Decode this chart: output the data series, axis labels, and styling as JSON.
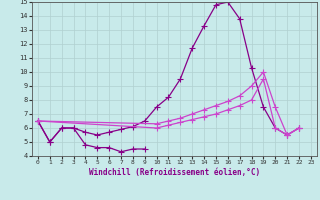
{
  "xlabel": "Windchill (Refroidissement éolien,°C)",
  "xlim": [
    -0.5,
    23.5
  ],
  "ylim": [
    4,
    15
  ],
  "xticks": [
    0,
    1,
    2,
    3,
    4,
    5,
    6,
    7,
    8,
    9,
    10,
    11,
    12,
    13,
    14,
    15,
    16,
    17,
    18,
    19,
    20,
    21,
    22,
    23
  ],
  "yticks": [
    4,
    5,
    6,
    7,
    8,
    9,
    10,
    11,
    12,
    13,
    14,
    15
  ],
  "background_color": "#c8eaea",
  "grid_color": "#b0d0d0",
  "lc_dark": "#880088",
  "lc_light": "#cc44cc",
  "curve1_x": [
    0,
    1,
    2,
    3,
    4,
    5,
    6,
    7,
    8,
    9
  ],
  "curve1_y": [
    6.5,
    5.0,
    6.0,
    6.0,
    4.8,
    4.6,
    4.6,
    4.3,
    4.5,
    4.5
  ],
  "curve2_x": [
    0,
    1,
    2,
    3,
    4,
    5,
    6,
    7,
    8,
    9,
    10,
    11,
    12,
    13,
    14,
    15,
    16,
    17,
    18,
    19,
    20,
    21,
    22
  ],
  "curve2_y": [
    6.5,
    5.0,
    6.0,
    6.0,
    5.7,
    5.5,
    5.7,
    5.9,
    6.1,
    6.5,
    7.5,
    8.2,
    9.5,
    11.7,
    13.3,
    14.8,
    15.0,
    13.8,
    10.3,
    7.5,
    6.0,
    5.5,
    6.0
  ],
  "curve3_x": [
    0,
    10,
    11,
    12,
    13,
    14,
    15,
    16,
    17,
    18,
    19,
    20,
    21,
    22
  ],
  "curve3_y": [
    6.5,
    6.3,
    6.5,
    6.7,
    7.0,
    7.3,
    7.6,
    7.9,
    8.3,
    9.0,
    10.0,
    7.5,
    5.5,
    6.0
  ],
  "curve4_x": [
    0,
    10,
    11,
    12,
    13,
    14,
    15,
    16,
    17,
    18,
    19,
    20,
    21,
    22
  ],
  "curve4_y": [
    6.5,
    6.0,
    6.2,
    6.4,
    6.6,
    6.8,
    7.0,
    7.3,
    7.6,
    8.0,
    9.5,
    6.0,
    5.5,
    6.0
  ],
  "marker": "+",
  "markersize": 4,
  "linewidth": 0.9
}
